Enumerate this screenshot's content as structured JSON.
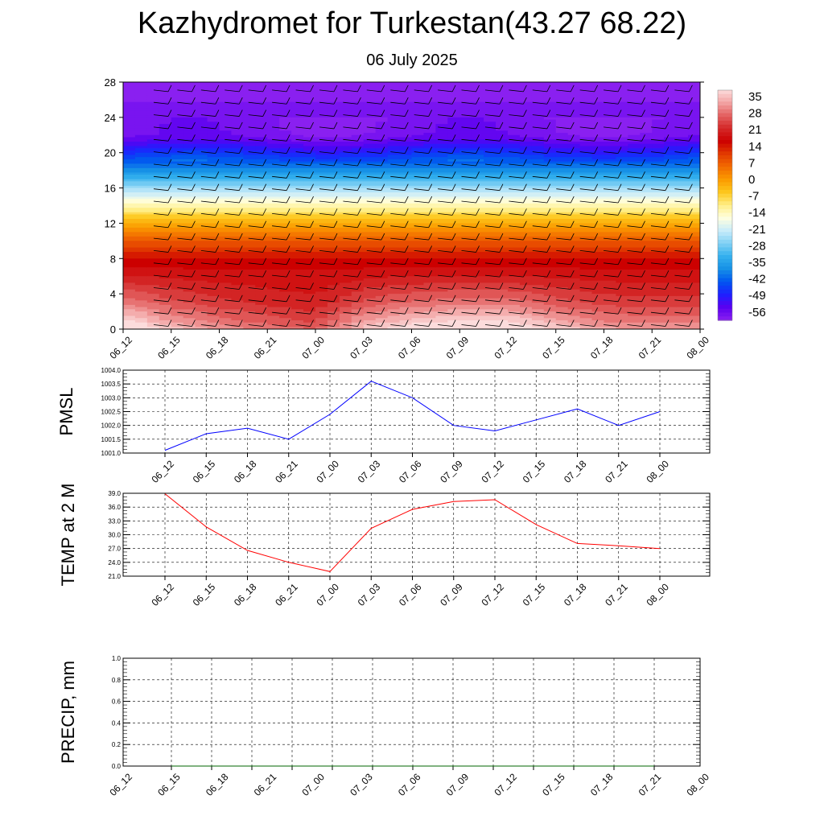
{
  "header": {
    "title": "Kazhydromet for Turkestan(43.27 68.22)",
    "subtitle": "06 July 2025"
  },
  "colors": {
    "pmsl_line": "#0000ff",
    "temp_line": "#ff0000",
    "precip_line": "#006400",
    "grid": "#000000"
  },
  "chart_data": [
    {
      "type": "heatmap",
      "x_ticks": [
        "06_12",
        "06_15",
        "06_18",
        "06_21",
        "07_00",
        "07_03",
        "07_06",
        "07_09",
        "07_12",
        "07_15",
        "07_18",
        "07_21",
        "08_00"
      ],
      "y_ticks": [
        0,
        4,
        8,
        12,
        16,
        20,
        24,
        28
      ],
      "ylim": [
        0,
        28
      ],
      "colorbar_labels": [
        "35",
        "28",
        "21",
        "14",
        "7",
        "0",
        "-7",
        "-14",
        "-21",
        "-28",
        "-35",
        "-42",
        "-49",
        "-56"
      ],
      "colorbar_colors": [
        "#fcdcdc",
        "#f2a2a2",
        "#e36060",
        "#d42828",
        "#cc0000",
        "#e23b00",
        "#f26b00",
        "#fb9b00",
        "#fdc71c",
        "#ffee86",
        "#ffffe0",
        "#c8ecfa",
        "#7fd0f4",
        "#33b0ee",
        "#1690e6",
        "#0055f0",
        "#1e20ff",
        "#5a00f0",
        "#8a20f0"
      ],
      "profile": [
        {
          "level": 0,
          "value": 34
        },
        {
          "level": 1,
          "value": 30
        },
        {
          "level": 2,
          "value": 27
        },
        {
          "level": 3,
          "value": 24
        },
        {
          "level": 4,
          "value": 22
        },
        {
          "level": 5,
          "value": 20
        },
        {
          "level": 6,
          "value": 18
        },
        {
          "level": 8,
          "value": 14
        },
        {
          "level": 10,
          "value": 6
        },
        {
          "level": 12,
          "value": -4
        },
        {
          "level": 13.5,
          "value": -12
        },
        {
          "level": 14,
          "value": -15
        },
        {
          "level": 16,
          "value": -27
        },
        {
          "level": 18,
          "value": -40
        },
        {
          "level": 20,
          "value": -50
        },
        {
          "level": 21.5,
          "value": -58
        },
        {
          "level": 22,
          "value": -60
        },
        {
          "level": 28,
          "value": -62
        }
      ],
      "surface_temp": [
        38,
        31,
        27,
        24,
        22,
        31,
        35,
        37,
        37,
        32,
        28,
        27,
        27
      ]
    },
    {
      "type": "line",
      "ylabel": "PMSL",
      "x": [
        "06_12",
        "06_15",
        "06_18",
        "06_21",
        "07_00",
        "07_03",
        "07_06",
        "07_09",
        "07_12",
        "07_15",
        "07_18",
        "07_21",
        "08_00"
      ],
      "y_ticks": [
        "1001.0",
        "1001.5",
        "1002.0",
        "1002.5",
        "1003.0",
        "1003.5",
        "1004.0"
      ],
      "ylim": [
        1001.0,
        1004.0
      ],
      "grid": true,
      "series": [
        {
          "values": [
            1001.1,
            1001.7,
            1001.9,
            1001.5,
            1002.4,
            1003.6,
            1003.0,
            1002.0,
            1001.8,
            1002.2,
            1002.6,
            1002.0,
            1002.5
          ]
        }
      ]
    },
    {
      "type": "line",
      "ylabel": "TEMP at 2 M",
      "x": [
        "06_12",
        "06_15",
        "06_18",
        "06_21",
        "07_00",
        "07_03",
        "07_06",
        "07_09",
        "07_12",
        "07_15",
        "07_18",
        "07_21",
        "08_00"
      ],
      "y_ticks": [
        "21.0",
        "24.0",
        "27.0",
        "30.0",
        "33.0",
        "36.0",
        "39.0"
      ],
      "ylim": [
        21.0,
        39.0
      ],
      "grid": true,
      "series": [
        {
          "values": [
            38.9,
            31.7,
            26.6,
            24.0,
            22.0,
            31.4,
            35.5,
            37.2,
            37.6,
            32.2,
            28.1,
            27.6,
            27.0
          ]
        }
      ]
    },
    {
      "type": "line",
      "ylabel": "PRECIP, mm",
      "x": [
        "06_12",
        "06_15",
        "06_18",
        "06_21",
        "07_00",
        "07_03",
        "07_06",
        "07_09",
        "07_12",
        "07_15",
        "07_18",
        "07_21",
        "08_00"
      ],
      "y_ticks": [
        "0.0",
        "0.2",
        "0.4",
        "0.6",
        "0.8",
        "1.0"
      ],
      "ylim": [
        0.0,
        1.0
      ],
      "grid": true,
      "series": [
        {
          "values": [
            0,
            0,
            0,
            0,
            0,
            0,
            0,
            0,
            0,
            0,
            0,
            0,
            0
          ]
        }
      ]
    }
  ]
}
